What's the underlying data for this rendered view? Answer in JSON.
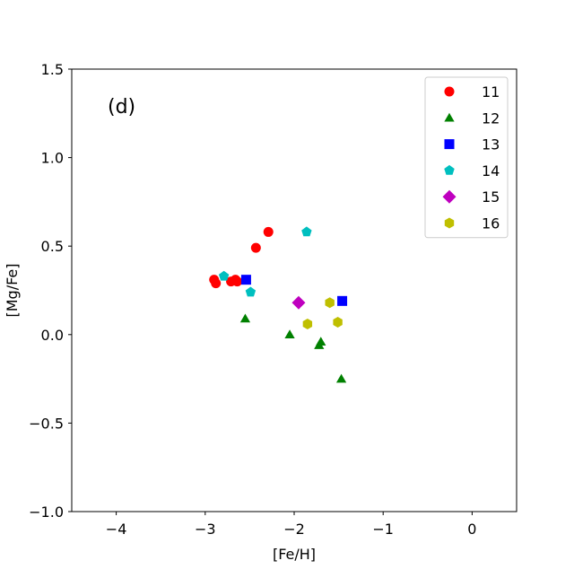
{
  "chart_data": {
    "type": "scatter",
    "panel_label": "(d)",
    "xlabel": "[Fe/H]",
    "ylabel": "[Mg/Fe]",
    "xlim": [
      -4.5,
      0.5
    ],
    "ylim": [
      -1.0,
      1.5
    ],
    "xticks": [
      -4,
      -3,
      -2,
      -1,
      0
    ],
    "xtick_labels": [
      "−4",
      "−3",
      "−2",
      "−1",
      "0"
    ],
    "yticks": [
      -1.0,
      -0.5,
      0.0,
      0.5,
      1.0,
      1.5
    ],
    "ytick_labels": [
      "−1.0",
      "−0.5",
      "0.0",
      "0.5",
      "1.0",
      "1.5"
    ],
    "grid": false,
    "legend_position": "top-right",
    "series": [
      {
        "name": "11",
        "marker": "circle",
        "color": "#ff0000",
        "points": [
          [
            -2.9,
            0.31
          ],
          [
            -2.88,
            0.29
          ],
          [
            -2.71,
            0.3
          ],
          [
            -2.66,
            0.31
          ],
          [
            -2.64,
            0.3
          ],
          [
            -2.43,
            0.49
          ],
          [
            -2.29,
            0.58
          ]
        ]
      },
      {
        "name": "12",
        "marker": "triangle",
        "color": "#008000",
        "points": [
          [
            -2.55,
            0.09
          ],
          [
            -2.05,
            0.0
          ],
          [
            -1.72,
            -0.06
          ],
          [
            -1.7,
            -0.04
          ],
          [
            -1.47,
            -0.25
          ]
        ]
      },
      {
        "name": "13",
        "marker": "square",
        "color": "#0000ff",
        "points": [
          [
            -2.54,
            0.31
          ],
          [
            -1.46,
            0.19
          ]
        ]
      },
      {
        "name": "14",
        "marker": "pentagon",
        "color": "#00bfbf",
        "points": [
          [
            -2.79,
            0.33
          ],
          [
            -2.49,
            0.24
          ],
          [
            -1.86,
            0.58
          ]
        ]
      },
      {
        "name": "15",
        "marker": "diamond",
        "color": "#bf00bf",
        "points": [
          [
            -1.95,
            0.18
          ]
        ]
      },
      {
        "name": "16",
        "marker": "hexagon",
        "color": "#bfbf00",
        "points": [
          [
            -1.85,
            0.06
          ],
          [
            -1.6,
            0.18
          ],
          [
            -1.51,
            0.07
          ]
        ]
      }
    ]
  }
}
